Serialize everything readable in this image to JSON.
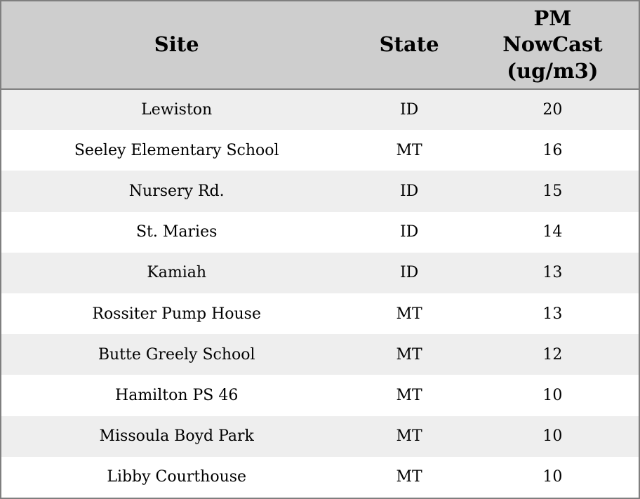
{
  "chart_data": {
    "type": "table",
    "columns": [
      "Site",
      "State",
      "PM NowCast (ug/m3)"
    ],
    "rows": [
      [
        "Lewiston",
        "ID",
        20
      ],
      [
        "Seeley Elementary School",
        "MT",
        16
      ],
      [
        "Nursery Rd.",
        "ID",
        15
      ],
      [
        "St. Maries",
        "ID",
        14
      ],
      [
        "Kamiah",
        "ID",
        13
      ],
      [
        "Rossiter Pump House",
        "MT",
        13
      ],
      [
        "Butte Greely School",
        "MT",
        12
      ],
      [
        "Hamilton PS 46",
        "MT",
        10
      ],
      [
        "Missoula Boyd Park",
        "MT",
        10
      ],
      [
        "Libby Courthouse",
        "MT",
        10
      ]
    ],
    "layout": {
      "striped_rows": true,
      "header_position": "top"
    }
  },
  "colors": {
    "header_bg": "#cecece",
    "row_alt_bg": "#eeeeee",
    "row_bg": "#ffffff",
    "border": "#7f7f7f",
    "text": "#000000"
  }
}
